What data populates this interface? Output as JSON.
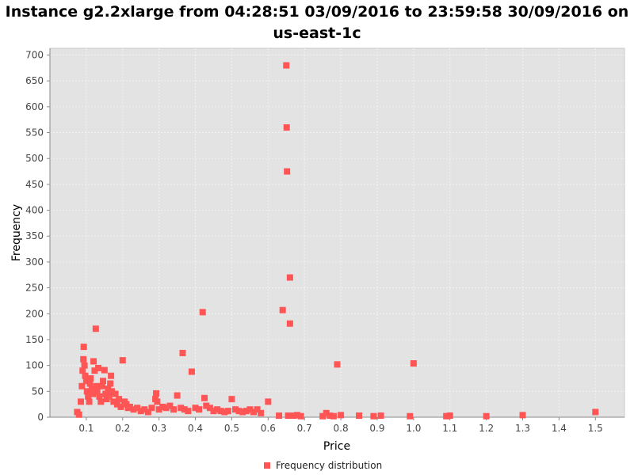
{
  "chart_data": {
    "type": "scatter",
    "title": "Instance g2.2xlarge from 04:28:51 03/09/2016 to 23:59:58 30/09/2016 on us-east-1c",
    "xlabel": "Price",
    "ylabel": "Frequency",
    "xlim": [
      0,
      1.58
    ],
    "ylim": [
      0,
      713
    ],
    "x_ticks": [
      "0.1",
      "0.2",
      "0.3",
      "0.4",
      "0.5",
      "0.6",
      "0.7",
      "0.8",
      "0.9",
      "1.0",
      "1.1",
      "1.2",
      "1.3",
      "1.4",
      "1.5"
    ],
    "y_ticks": [
      "0",
      "50",
      "100",
      "150",
      "200",
      "250",
      "300",
      "350",
      "400",
      "450",
      "500",
      "550",
      "600",
      "650",
      "700"
    ],
    "grid": true,
    "legend_position": "bottom",
    "series": [
      {
        "name": "Frequency distribution",
        "color": "#ff5555",
        "points": [
          [
            0.075,
            10
          ],
          [
            0.08,
            5
          ],
          [
            0.085,
            30
          ],
          [
            0.088,
            60
          ],
          [
            0.09,
            90
          ],
          [
            0.092,
            112
          ],
          [
            0.093,
            136
          ],
          [
            0.095,
            100
          ],
          [
            0.097,
            80
          ],
          [
            0.1,
            70
          ],
          [
            0.102,
            50
          ],
          [
            0.105,
            40
          ],
          [
            0.108,
            30
          ],
          [
            0.11,
            65
          ],
          [
            0.112,
            75
          ],
          [
            0.115,
            55
          ],
          [
            0.118,
            45
          ],
          [
            0.12,
            108
          ],
          [
            0.123,
            90
          ],
          [
            0.126,
            171
          ],
          [
            0.128,
            60
          ],
          [
            0.13,
            50
          ],
          [
            0.133,
            95
          ],
          [
            0.136,
            40
          ],
          [
            0.14,
            30
          ],
          [
            0.143,
            60
          ],
          [
            0.146,
            70
          ],
          [
            0.15,
            91
          ],
          [
            0.153,
            45
          ],
          [
            0.156,
            35
          ],
          [
            0.16,
            55
          ],
          [
            0.163,
            40
          ],
          [
            0.166,
            65
          ],
          [
            0.168,
            80
          ],
          [
            0.17,
            50
          ],
          [
            0.175,
            30
          ],
          [
            0.18,
            45
          ],
          [
            0.185,
            25
          ],
          [
            0.19,
            35
          ],
          [
            0.195,
            20
          ],
          [
            0.2,
            110
          ],
          [
            0.205,
            30
          ],
          [
            0.21,
            25
          ],
          [
            0.215,
            18
          ],
          [
            0.22,
            20
          ],
          [
            0.23,
            15
          ],
          [
            0.24,
            18
          ],
          [
            0.25,
            12
          ],
          [
            0.26,
            15
          ],
          [
            0.27,
            10
          ],
          [
            0.28,
            18
          ],
          [
            0.29,
            35
          ],
          [
            0.292,
            46
          ],
          [
            0.295,
            30
          ],
          [
            0.3,
            15
          ],
          [
            0.31,
            20
          ],
          [
            0.32,
            18
          ],
          [
            0.33,
            22
          ],
          [
            0.34,
            15
          ],
          [
            0.35,
            42
          ],
          [
            0.36,
            18
          ],
          [
            0.365,
            124
          ],
          [
            0.37,
            15
          ],
          [
            0.38,
            12
          ],
          [
            0.39,
            88
          ],
          [
            0.4,
            18
          ],
          [
            0.41,
            15
          ],
          [
            0.42,
            203
          ],
          [
            0.425,
            37
          ],
          [
            0.43,
            22
          ],
          [
            0.44,
            18
          ],
          [
            0.45,
            12
          ],
          [
            0.46,
            15
          ],
          [
            0.47,
            12
          ],
          [
            0.48,
            10
          ],
          [
            0.49,
            12
          ],
          [
            0.5,
            35
          ],
          [
            0.51,
            15
          ],
          [
            0.52,
            12
          ],
          [
            0.53,
            10
          ],
          [
            0.54,
            12
          ],
          [
            0.55,
            15
          ],
          [
            0.56,
            10
          ],
          [
            0.57,
            15
          ],
          [
            0.58,
            8
          ],
          [
            0.6,
            30
          ],
          [
            0.63,
            3
          ],
          [
            0.64,
            207
          ],
          [
            0.65,
            680
          ],
          [
            0.651,
            560
          ],
          [
            0.652,
            475
          ],
          [
            0.655,
            3
          ],
          [
            0.66,
            270
          ],
          [
            0.66,
            181
          ],
          [
            0.67,
            3
          ],
          [
            0.68,
            4
          ],
          [
            0.69,
            2
          ],
          [
            0.75,
            2
          ],
          [
            0.76,
            8
          ],
          [
            0.77,
            3
          ],
          [
            0.78,
            2
          ],
          [
            0.79,
            102
          ],
          [
            0.8,
            4
          ],
          [
            0.85,
            3
          ],
          [
            0.89,
            2
          ],
          [
            0.91,
            3
          ],
          [
            0.99,
            2
          ],
          [
            1.0,
            104
          ],
          [
            1.09,
            2
          ],
          [
            1.1,
            3
          ],
          [
            1.2,
            2
          ],
          [
            1.3,
            4
          ],
          [
            1.5,
            10
          ]
        ]
      }
    ]
  }
}
